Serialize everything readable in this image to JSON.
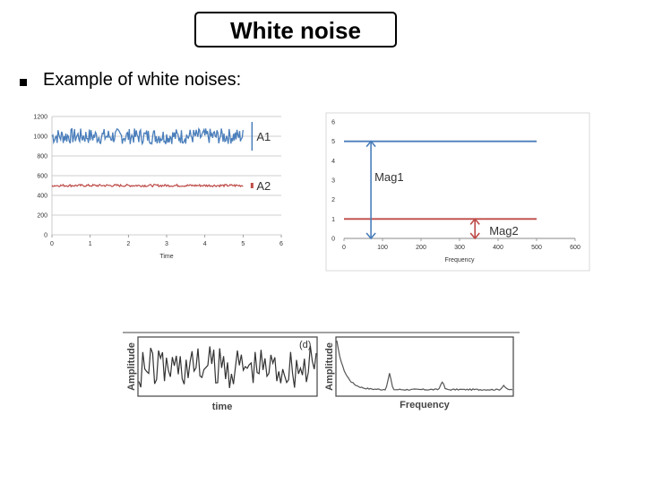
{
  "slide": {
    "title": "White noise",
    "bullet": "Example of white noises:"
  },
  "chart_data": [
    {
      "type": "line",
      "x_ticks": [
        0,
        1,
        2,
        3,
        4,
        5,
        6
      ],
      "y_ticks": [
        0,
        200,
        400,
        600,
        800,
        1000,
        1200
      ],
      "xlim": [
        0,
        6
      ],
      "ylim": [
        0,
        1200
      ],
      "xlabel": "Time",
      "grid": true,
      "series": [
        {
          "name": "A1",
          "mean": 1000,
          "spread": 80,
          "x_range": [
            0,
            5
          ],
          "color": "#4a7ebb"
        },
        {
          "name": "A2",
          "mean": 500,
          "spread": 12,
          "x_range": [
            0,
            5
          ],
          "color": "#be4b48"
        }
      ]
    },
    {
      "type": "line",
      "x_ticks": [
        0,
        100,
        200,
        300,
        400,
        500,
        600
      ],
      "y_ticks": [
        0,
        1,
        2,
        3,
        4,
        5,
        6
      ],
      "xlim": [
        0,
        600
      ],
      "ylim": [
        0,
        6
      ],
      "xlabel": "Frequency",
      "grid": false,
      "series": [
        {
          "name": "Mag1",
          "value": 5,
          "x_range": [
            0,
            500
          ],
          "marker_x": 70,
          "color": "#4a7ebb"
        },
        {
          "name": "Mag2",
          "value": 1,
          "x_range": [
            0,
            500
          ],
          "marker_x": 340,
          "color": "#be4b48"
        }
      ]
    },
    {
      "type": "line",
      "tag": "(d)",
      "xlabel": "time",
      "ylabel": "Amplitude",
      "color": "#333333"
    },
    {
      "type": "line",
      "xlabel": "Frequency",
      "ylabel": "Amplitude",
      "peaks": [
        0.3,
        0.6,
        0.95
      ],
      "color": "#555555"
    }
  ]
}
